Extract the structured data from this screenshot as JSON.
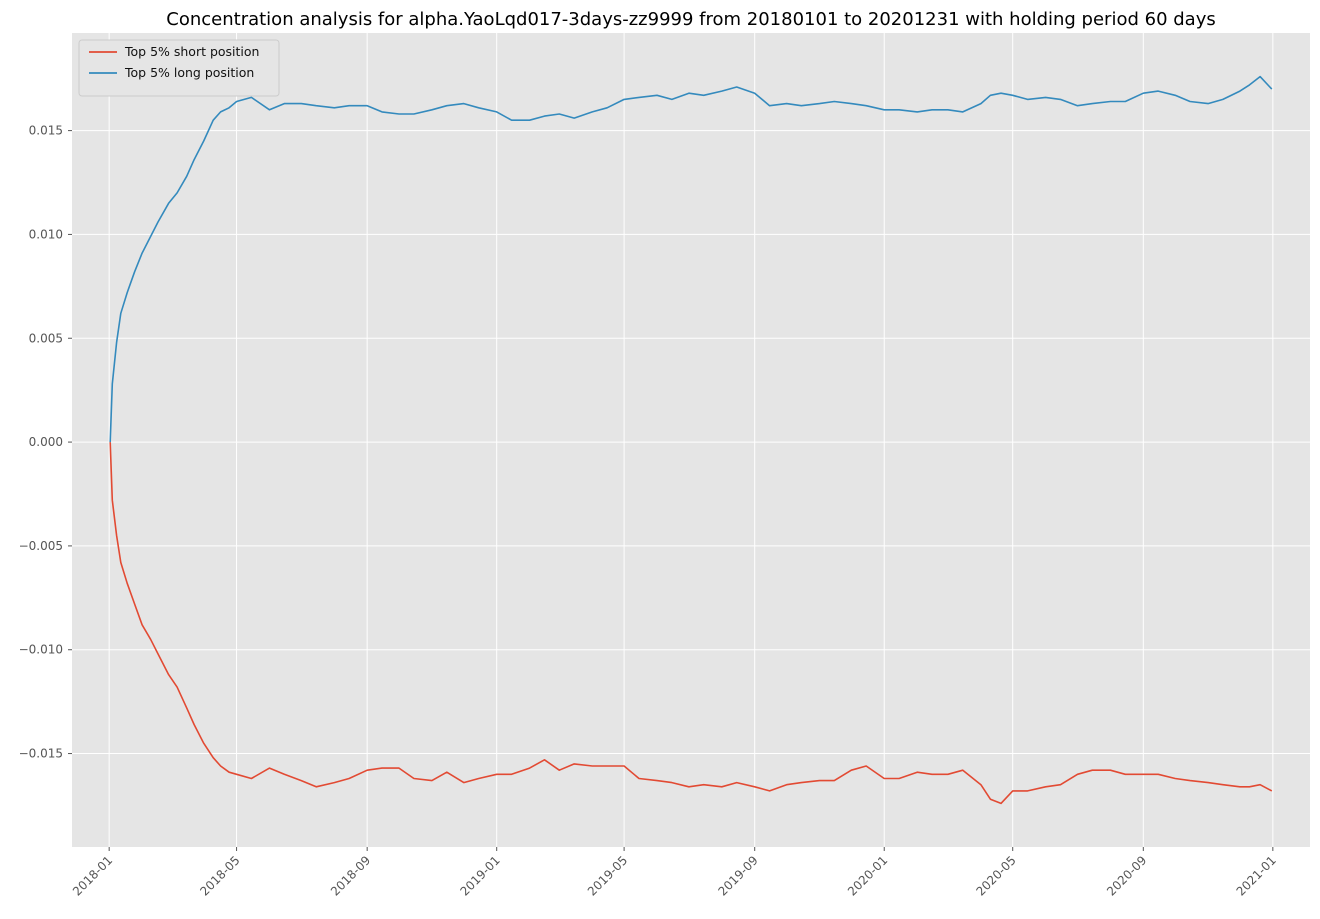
{
  "chart_data": {
    "type": "line",
    "title": "Concentration analysis for alpha.YaoLqd017-3days-zz9999 from 20180101 to 20201231 with holding period 60 days",
    "xlabel": "",
    "ylabel": "",
    "x_axis": "date",
    "xlim": [
      "2017-11-27",
      "2021-02-05"
    ],
    "ylim": [
      -0.0195,
      0.0197
    ],
    "grid": true,
    "legend_position": "top-left",
    "x_ticks": [
      "2018-01-01",
      "2018-05-01",
      "2018-09-01",
      "2019-01-01",
      "2019-05-01",
      "2019-09-01",
      "2020-01-01",
      "2020-05-01",
      "2020-09-01",
      "2021-01-01"
    ],
    "x_tick_labels": [
      "2018-01",
      "2018-05",
      "2018-09",
      "2019-01",
      "2019-05",
      "2019-09",
      "2020-01",
      "2020-05",
      "2020-09",
      "2021-01"
    ],
    "y_ticks": [
      0.015,
      0.01,
      0.005,
      0.0,
      -0.005,
      -0.01,
      -0.015
    ],
    "y_tick_labels": [
      "0.015",
      "0.010",
      "0.005",
      "0.000",
      "−0.005",
      "−0.010",
      "−0.015"
    ],
    "series": [
      {
        "name": "Top 5% short position",
        "color": "#e24a33",
        "x": [
          "2018-01-02",
          "2018-01-04",
          "2018-01-08",
          "2018-01-12",
          "2018-01-18",
          "2018-01-25",
          "2018-02-01",
          "2018-02-09",
          "2018-02-16",
          "2018-02-26",
          "2018-03-06",
          "2018-03-15",
          "2018-03-22",
          "2018-03-31",
          "2018-04-09",
          "2018-04-16",
          "2018-04-24",
          "2018-05-01",
          "2018-05-15",
          "2018-06-01",
          "2018-06-15",
          "2018-07-01",
          "2018-07-15",
          "2018-08-01",
          "2018-08-15",
          "2018-09-01",
          "2018-09-15",
          "2018-10-01",
          "2018-10-15",
          "2018-11-01",
          "2018-11-15",
          "2018-12-01",
          "2018-12-15",
          "2019-01-01",
          "2019-01-15",
          "2019-02-01",
          "2019-02-15",
          "2019-03-01",
          "2019-03-15",
          "2019-04-01",
          "2019-04-15",
          "2019-05-01",
          "2019-05-15",
          "2019-06-01",
          "2019-06-15",
          "2019-07-01",
          "2019-07-15",
          "2019-08-01",
          "2019-08-15",
          "2019-09-01",
          "2019-09-15",
          "2019-10-01",
          "2019-10-15",
          "2019-11-01",
          "2019-11-15",
          "2019-12-01",
          "2019-12-15",
          "2020-01-01",
          "2020-01-15",
          "2020-02-01",
          "2020-02-15",
          "2020-03-01",
          "2020-03-15",
          "2020-04-01",
          "2020-04-10",
          "2020-04-20",
          "2020-05-01",
          "2020-05-15",
          "2020-06-01",
          "2020-06-15",
          "2020-07-01",
          "2020-07-15",
          "2020-08-01",
          "2020-08-15",
          "2020-09-01",
          "2020-09-15",
          "2020-10-01",
          "2020-10-15",
          "2020-11-01",
          "2020-11-15",
          "2020-12-01",
          "2020-12-10",
          "2020-12-20",
          "2020-12-31"
        ],
        "values": [
          0.0,
          -0.0028,
          -0.0045,
          -0.0058,
          -0.0068,
          -0.0078,
          -0.0088,
          -0.0095,
          -0.0102,
          -0.0112,
          -0.0118,
          -0.0128,
          -0.0136,
          -0.0145,
          -0.0152,
          -0.0156,
          -0.0159,
          -0.016,
          -0.0162,
          -0.0157,
          -0.016,
          -0.0163,
          -0.0166,
          -0.0164,
          -0.0162,
          -0.0158,
          -0.0157,
          -0.0157,
          -0.0162,
          -0.0163,
          -0.0159,
          -0.0164,
          -0.0162,
          -0.016,
          -0.016,
          -0.0157,
          -0.0153,
          -0.0158,
          -0.0155,
          -0.0156,
          -0.0156,
          -0.0156,
          -0.0162,
          -0.0163,
          -0.0164,
          -0.0166,
          -0.0165,
          -0.0166,
          -0.0164,
          -0.0166,
          -0.0168,
          -0.0165,
          -0.0164,
          -0.0163,
          -0.0163,
          -0.0158,
          -0.0156,
          -0.0162,
          -0.0162,
          -0.0159,
          -0.016,
          -0.016,
          -0.0158,
          -0.0165,
          -0.0172,
          -0.0174,
          -0.0168,
          -0.0168,
          -0.0166,
          -0.0165,
          -0.016,
          -0.0158,
          -0.0158,
          -0.016,
          -0.016,
          -0.016,
          -0.0162,
          -0.0163,
          -0.0164,
          -0.0165,
          -0.0166,
          -0.0166,
          -0.0165,
          -0.0168
        ]
      },
      {
        "name": "Top 5% long position",
        "color": "#348abd",
        "x": [
          "2018-01-02",
          "2018-01-04",
          "2018-01-08",
          "2018-01-12",
          "2018-01-18",
          "2018-01-25",
          "2018-02-01",
          "2018-02-09",
          "2018-02-16",
          "2018-02-26",
          "2018-03-06",
          "2018-03-15",
          "2018-03-22",
          "2018-03-31",
          "2018-04-09",
          "2018-04-16",
          "2018-04-24",
          "2018-05-01",
          "2018-05-15",
          "2018-06-01",
          "2018-06-15",
          "2018-07-01",
          "2018-07-15",
          "2018-08-01",
          "2018-08-15",
          "2018-09-01",
          "2018-09-15",
          "2018-10-01",
          "2018-10-15",
          "2018-11-01",
          "2018-11-15",
          "2018-12-01",
          "2018-12-15",
          "2019-01-01",
          "2019-01-15",
          "2019-02-01",
          "2019-02-15",
          "2019-03-01",
          "2019-03-15",
          "2019-04-01",
          "2019-04-15",
          "2019-05-01",
          "2019-05-15",
          "2019-06-01",
          "2019-06-15",
          "2019-07-01",
          "2019-07-15",
          "2019-08-01",
          "2019-08-15",
          "2019-09-01",
          "2019-09-15",
          "2019-10-01",
          "2019-10-15",
          "2019-11-01",
          "2019-11-15",
          "2019-12-01",
          "2019-12-15",
          "2020-01-01",
          "2020-01-15",
          "2020-02-01",
          "2020-02-15",
          "2020-03-01",
          "2020-03-15",
          "2020-04-01",
          "2020-04-10",
          "2020-04-20",
          "2020-05-01",
          "2020-05-15",
          "2020-06-01",
          "2020-06-15",
          "2020-07-01",
          "2020-07-15",
          "2020-08-01",
          "2020-08-15",
          "2020-09-01",
          "2020-09-15",
          "2020-10-01",
          "2020-10-15",
          "2020-11-01",
          "2020-11-15",
          "2020-12-01",
          "2020-12-10",
          "2020-12-20",
          "2020-12-31"
        ],
        "values": [
          0.0,
          0.0028,
          0.0048,
          0.0062,
          0.0072,
          0.0082,
          0.0091,
          0.0099,
          0.0106,
          0.0115,
          0.012,
          0.0128,
          0.0136,
          0.0145,
          0.0155,
          0.0159,
          0.0161,
          0.0164,
          0.0166,
          0.016,
          0.0163,
          0.0163,
          0.0162,
          0.0161,
          0.0162,
          0.0162,
          0.0159,
          0.0158,
          0.0158,
          0.016,
          0.0162,
          0.0163,
          0.0161,
          0.0159,
          0.0155,
          0.0155,
          0.0157,
          0.0158,
          0.0156,
          0.0159,
          0.0161,
          0.0165,
          0.0166,
          0.0167,
          0.0165,
          0.0168,
          0.0167,
          0.0169,
          0.0171,
          0.0168,
          0.0162,
          0.0163,
          0.0162,
          0.0163,
          0.0164,
          0.0163,
          0.0162,
          0.016,
          0.016,
          0.0159,
          0.016,
          0.016,
          0.0159,
          0.0163,
          0.0167,
          0.0168,
          0.0167,
          0.0165,
          0.0166,
          0.0165,
          0.0162,
          0.0163,
          0.0164,
          0.0164,
          0.0168,
          0.0169,
          0.0167,
          0.0164,
          0.0163,
          0.0165,
          0.0169,
          0.0172,
          0.0176,
          0.017
        ]
      }
    ]
  }
}
